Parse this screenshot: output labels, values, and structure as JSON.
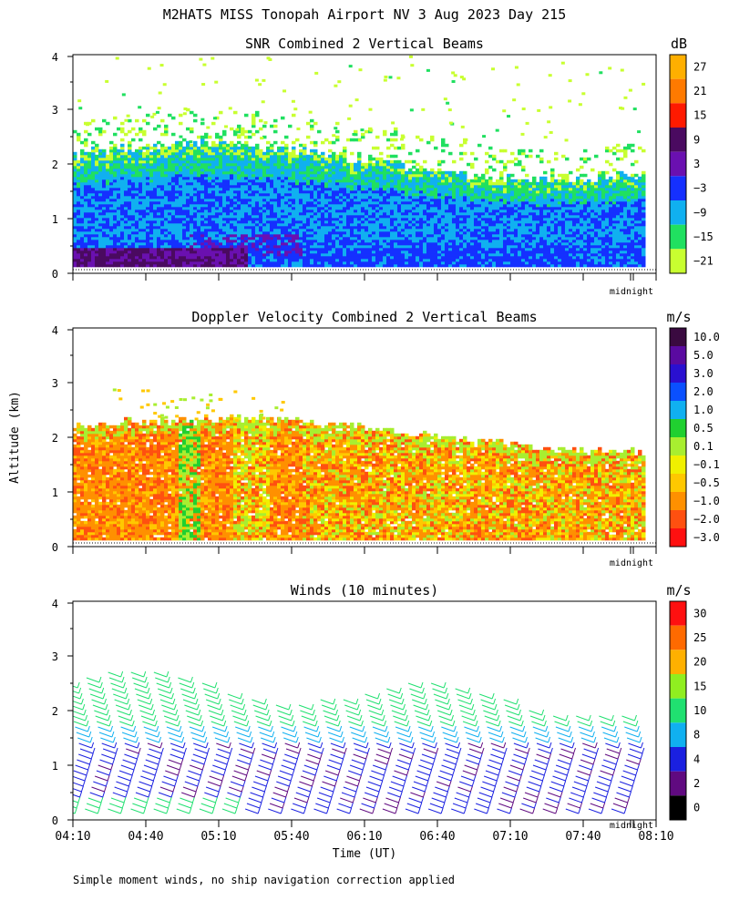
{
  "page": {
    "title": "M2HATS MISS Tonopah Airport NV   3 Aug 2023 Day 215",
    "altitude_label": "Altitude (km)",
    "time_label": "Time (UT)",
    "footnote": "Simple moment winds, no ship navigation correction applied",
    "time_ticks": [
      "04:10",
      "04:40",
      "05:10",
      "05:40",
      "06:10",
      "06:40",
      "07:10",
      "07:40",
      "08:10"
    ],
    "midnight_label": "midnight"
  },
  "chart_data": [
    {
      "type": "heatmap",
      "title": "SNR Combined 2 Vertical Beams",
      "ylabel": "Altitude (km)",
      "xlabel": "Time (UT)",
      "ylim": [
        0,
        4
      ],
      "yticks": [
        0,
        1,
        2,
        3,
        4
      ],
      "units": "dB",
      "colorbar": {
        "labels": [
          "27",
          "21",
          "15",
          "9",
          "3",
          "−3",
          "−9",
          "−15",
          "−21"
        ],
        "colors": [
          "#ffaf00",
          "#ff7a00",
          "#ff1a00",
          "#4a0a60",
          "#6a10b0",
          "#1530ff",
          "#10b0f0",
          "#20e060",
          "#c8ff30"
        ]
      }
    },
    {
      "type": "heatmap",
      "title": "Doppler Velocity Combined 2 Vertical Beams",
      "ylabel": "Altitude (km)",
      "xlabel": "Time (UT)",
      "ylim": [
        0,
        4
      ],
      "yticks": [
        0,
        1,
        2,
        3,
        4
      ],
      "units": "m/s",
      "colorbar": {
        "labels": [
          "10.0",
          "5.0",
          "3.0",
          "2.0",
          "1.0",
          "0.5",
          "0.1",
          "−0.1",
          "−0.5",
          "−1.0",
          "−2.0",
          "−3.0"
        ],
        "colors": [
          "#3a0a40",
          "#5a0aa0",
          "#2a10d0",
          "#0a50ff",
          "#10b0f0",
          "#20d030",
          "#a8ee30",
          "#f0f000",
          "#ffc800",
          "#ff9000",
          "#ff5010",
          "#ff1010"
        ]
      }
    },
    {
      "type": "barbs",
      "title": "Winds (10 minutes)",
      "ylabel": "Altitude (km)",
      "xlabel": "Time (UT)",
      "ylim": [
        0,
        4
      ],
      "yticks": [
        0,
        1,
        2,
        3,
        4
      ],
      "units": "m/s",
      "profile_count": 25,
      "colorbar": {
        "labels": [
          "30",
          "25",
          "20",
          "15",
          "10",
          "8",
          "4",
          "2",
          "0"
        ],
        "colors": [
          "#ff1010",
          "#ff6a00",
          "#ffb000",
          "#90ee20",
          "#20e070",
          "#10b0f0",
          "#1a20e0",
          "#600a80",
          "#000000"
        ]
      }
    }
  ]
}
